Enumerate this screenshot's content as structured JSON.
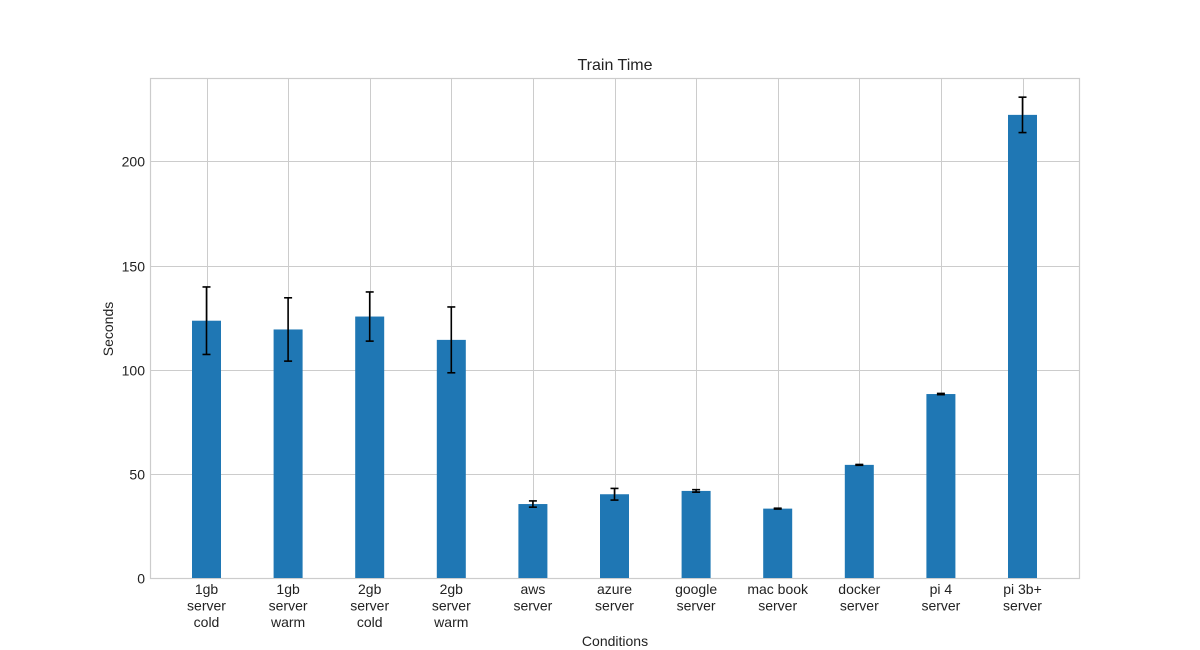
{
  "chart_data": {
    "type": "bar",
    "title": "Train Time",
    "xlabel": "Conditions",
    "ylabel": "Seconds",
    "ylim": [
      0,
      240
    ],
    "yticks": [
      0,
      50,
      100,
      150,
      200
    ],
    "grid": true,
    "categories": [
      [
        "1gb",
        "server",
        "cold"
      ],
      [
        "1gb",
        "server",
        "warm"
      ],
      [
        "2gb",
        "server",
        "cold"
      ],
      [
        "2gb",
        "server",
        "warm"
      ],
      [
        "aws",
        "server"
      ],
      [
        "azure",
        "server"
      ],
      [
        "google",
        "server"
      ],
      [
        "mac book",
        "server"
      ],
      [
        "docker",
        "server"
      ],
      [
        "pi 4",
        "server"
      ],
      [
        "pi 3b+",
        "server"
      ]
    ],
    "values": [
      123.5,
      119.3,
      125.5,
      114.3,
      35.5,
      40.2,
      41.8,
      33.3,
      54.3,
      88.3,
      222.3
    ],
    "errors": [
      16.2,
      15.2,
      11.8,
      15.8,
      1.5,
      2.8,
      0.6,
      0.2,
      0.2,
      0.3,
      8.5
    ],
    "bar_color": "#1f77b4",
    "error_color": "#000000"
  }
}
